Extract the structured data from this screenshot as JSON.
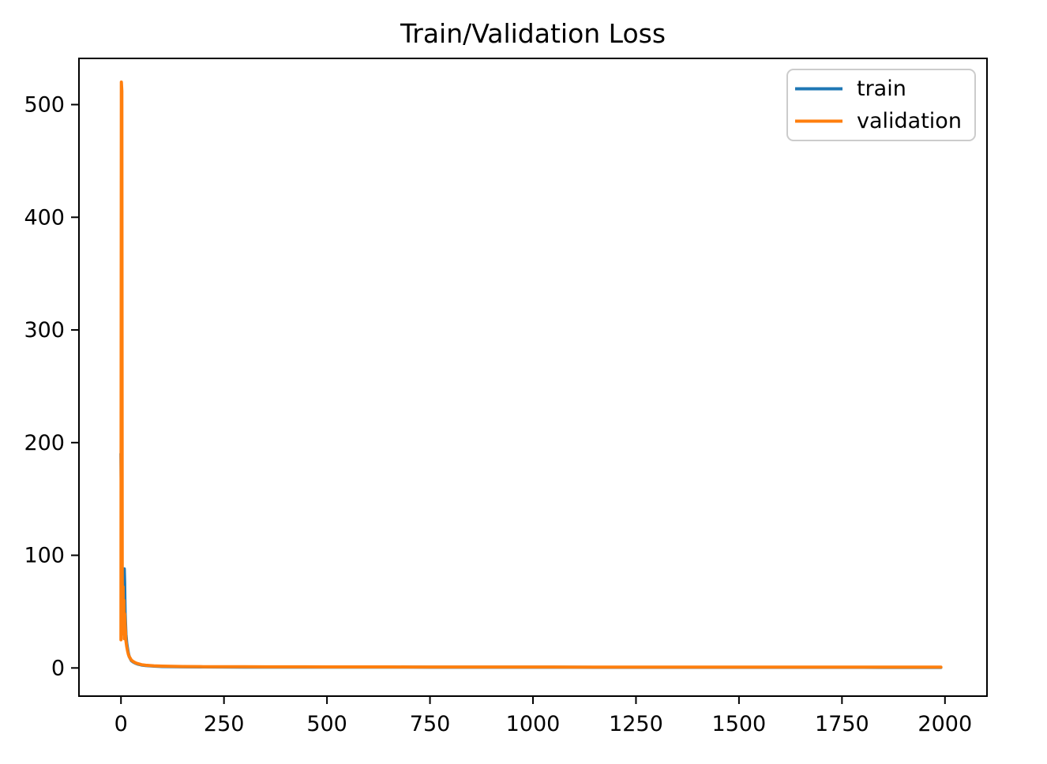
{
  "chart_data": {
    "type": "line",
    "title": "Train/Validation Loss",
    "xlabel": "",
    "ylabel": "",
    "xlim": [
      -102,
      2102
    ],
    "ylim": [
      -25,
      541
    ],
    "x_ticks": [
      0,
      250,
      500,
      750,
      1000,
      1250,
      1500,
      1750,
      2000
    ],
    "y_ticks": [
      0,
      100,
      200,
      300,
      400,
      500
    ],
    "grid": false,
    "background": "#ffffff",
    "axis_color": "#000000",
    "legend": {
      "position": "upper right",
      "border_color": "#cccccc",
      "entries": [
        "train",
        "validation"
      ]
    },
    "x": [
      0,
      1,
      2,
      3,
      4,
      5,
      6,
      7,
      8,
      9,
      10,
      12,
      14,
      16,
      18,
      20,
      25,
      30,
      35,
      40,
      50,
      60,
      80,
      100,
      150,
      200,
      250,
      300,
      350,
      400,
      450,
      500,
      550,
      600,
      650,
      700,
      750,
      800,
      850,
      900,
      950,
      1000,
      1050,
      1100,
      1150,
      1200,
      1250,
      1300,
      1350,
      1400,
      1450,
      1500,
      1550,
      1600,
      1650,
      1700,
      1750,
      1800,
      1850,
      1900,
      1950,
      1990
    ],
    "series": [
      {
        "name": "train",
        "color": "#1f77b4",
        "values": [
          190,
          150,
          100,
          70,
          55,
          65,
          45,
          85,
          88,
          75,
          50,
          30,
          22,
          17,
          13,
          10,
          6.5,
          5.2,
          4.2,
          3.5,
          2.6,
          2.1,
          1.6,
          1.3,
          1.0,
          0.9,
          0.85,
          0.8,
          0.78,
          0.75,
          0.73,
          0.72,
          0.7,
          0.7,
          0.68,
          0.68,
          0.66,
          0.65,
          0.65,
          0.64,
          0.63,
          0.62,
          0.62,
          0.61,
          0.6,
          0.6,
          0.6,
          0.59,
          0.58,
          0.58,
          0.57,
          0.57,
          0.56,
          0.56,
          0.55,
          0.55,
          0.54,
          0.54,
          0.53,
          0.53,
          0.52,
          0.52
        ]
      },
      {
        "name": "validation",
        "color": "#ff7f0e",
        "values": [
          25,
          520,
          512,
          80,
          38,
          72,
          30,
          60,
          26,
          48,
          40,
          24,
          19,
          15,
          12,
          10,
          7,
          5.6,
          4.6,
          3.9,
          2.9,
          2.4,
          1.9,
          1.6,
          1.3,
          1.15,
          1.1,
          1.05,
          1.0,
          0.98,
          0.96,
          0.94,
          0.92,
          0.9,
          0.89,
          0.88,
          0.87,
          0.86,
          0.85,
          0.84,
          0.83,
          0.82,
          0.82,
          0.81,
          0.8,
          0.8,
          0.79,
          0.78,
          0.78,
          0.77,
          0.77,
          0.76,
          0.76,
          0.75,
          0.75,
          0.74,
          0.74,
          0.73,
          0.73,
          0.72,
          0.72,
          0.72
        ]
      }
    ]
  }
}
